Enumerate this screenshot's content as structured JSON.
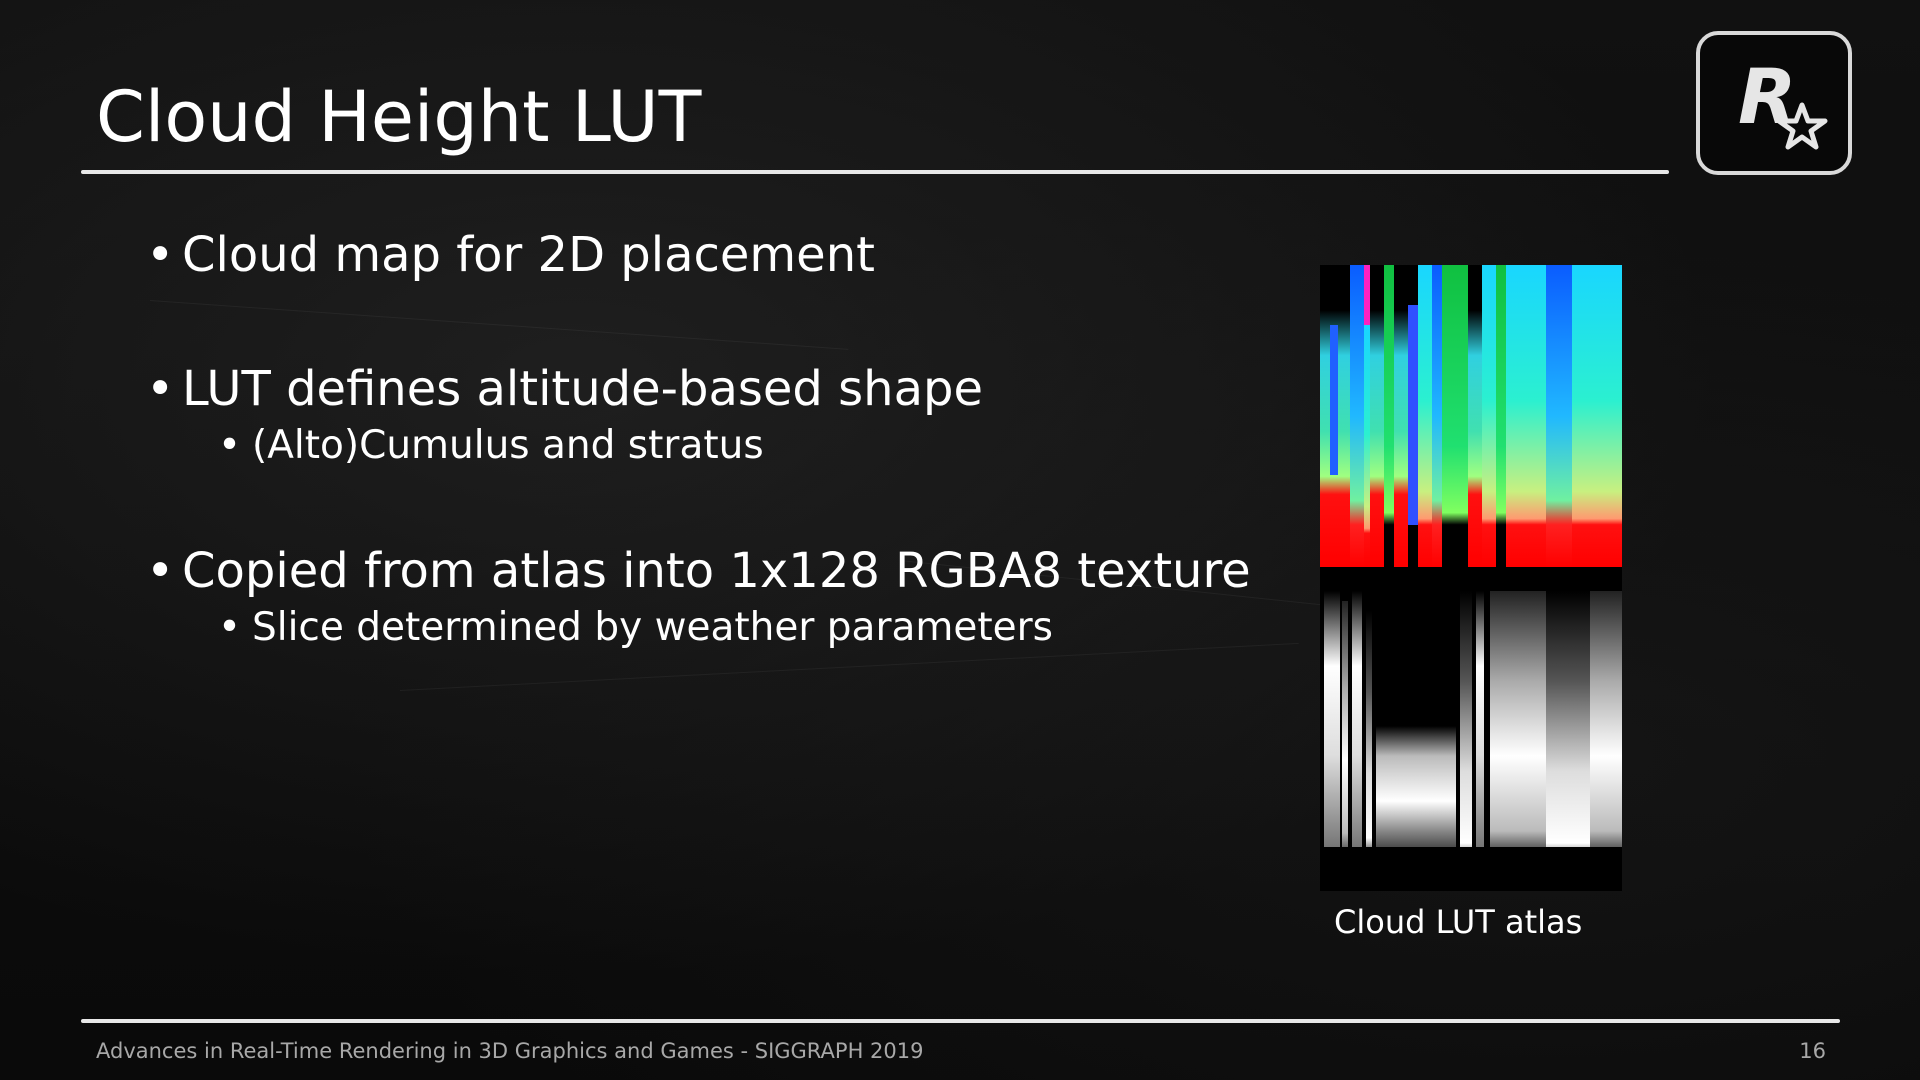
{
  "slide": {
    "title": "Cloud Height LUT",
    "bullets": [
      {
        "text": "Cloud map for 2D placement",
        "sub": []
      },
      {
        "text": "LUT defines altitude-based shape",
        "sub": [
          "(Alto)Cumulus and stratus"
        ]
      },
      {
        "text": "Copied from atlas into 1x128 RGBA8 texture",
        "sub": [
          "Slice determined by weather parameters"
        ]
      }
    ],
    "figure_caption": "Cloud LUT atlas",
    "footer": "Advances in Real-Time Rendering in 3D Graphics and Games - SIGGRAPH 2019",
    "page_number": "16"
  },
  "logo": {
    "icon": "rockstar-logo-icon",
    "letter": "R",
    "frame_color": "#d9d9d9"
  },
  "colors": {
    "background": "#0b0b0b",
    "text": "#ffffff",
    "footer_text": "#a8a8a8",
    "rule": "#e8e8e8"
  }
}
